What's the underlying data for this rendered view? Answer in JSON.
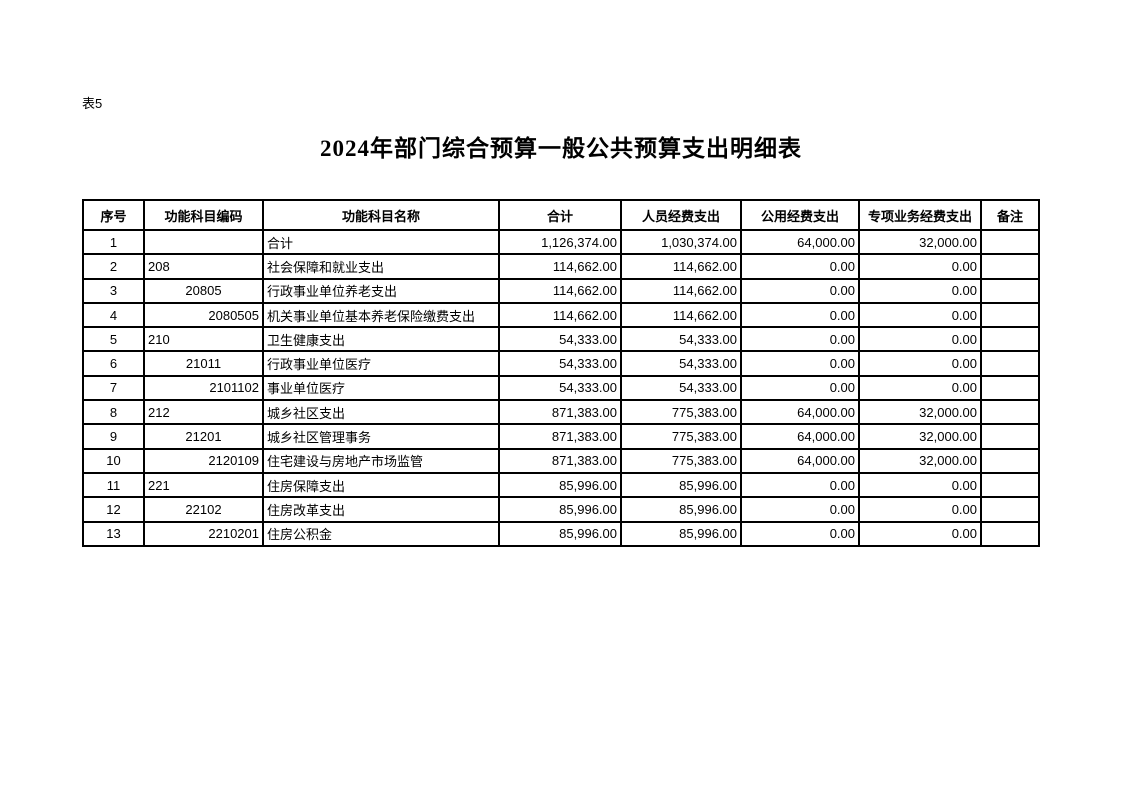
{
  "page": {
    "table_label": "表5",
    "title": "2024年部门综合预算一般公共预算支出明细表"
  },
  "table": {
    "columns": [
      "序号",
      "功能科目编码",
      "功能科目名称",
      "合计",
      "人员经费支出",
      "公用经费支出",
      "专项业务经费支出",
      "备注"
    ],
    "rows": [
      {
        "index": "1",
        "code": "",
        "name": "合计",
        "total": "1,126,374.00",
        "personnel": "1,030,374.00",
        "public": "64,000.00",
        "special": "32,000.00",
        "remark": ""
      },
      {
        "index": "2",
        "code": "208",
        "name": "社会保障和就业支出",
        "total": "114,662.00",
        "personnel": "114,662.00",
        "public": "0.00",
        "special": "0.00",
        "remark": ""
      },
      {
        "index": "3",
        "code": "20805",
        "name": "行政事业单位养老支出",
        "total": "114,662.00",
        "personnel": "114,662.00",
        "public": "0.00",
        "special": "0.00",
        "remark": ""
      },
      {
        "index": "4",
        "code": "2080505",
        "name": "机关事业单位基本养老保险缴费支出",
        "total": "114,662.00",
        "personnel": "114,662.00",
        "public": "0.00",
        "special": "0.00",
        "remark": ""
      },
      {
        "index": "5",
        "code": "210",
        "name": "卫生健康支出",
        "total": "54,333.00",
        "personnel": "54,333.00",
        "public": "0.00",
        "special": "0.00",
        "remark": ""
      },
      {
        "index": "6",
        "code": "21011",
        "name": "行政事业单位医疗",
        "total": "54,333.00",
        "personnel": "54,333.00",
        "public": "0.00",
        "special": "0.00",
        "remark": ""
      },
      {
        "index": "7",
        "code": "2101102",
        "name": "事业单位医疗",
        "total": "54,333.00",
        "personnel": "54,333.00",
        "public": "0.00",
        "special": "0.00",
        "remark": ""
      },
      {
        "index": "8",
        "code": "212",
        "name": "城乡社区支出",
        "total": "871,383.00",
        "personnel": "775,383.00",
        "public": "64,000.00",
        "special": "32,000.00",
        "remark": ""
      },
      {
        "index": "9",
        "code": "21201",
        "name": "城乡社区管理事务",
        "total": "871,383.00",
        "personnel": "775,383.00",
        "public": "64,000.00",
        "special": "32,000.00",
        "remark": ""
      },
      {
        "index": "10",
        "code": "2120109",
        "name": "住宅建设与房地产市场监管",
        "total": "871,383.00",
        "personnel": "775,383.00",
        "public": "64,000.00",
        "special": "32,000.00",
        "remark": ""
      },
      {
        "index": "11",
        "code": "221",
        "name": "住房保障支出",
        "total": "85,996.00",
        "personnel": "85,996.00",
        "public": "0.00",
        "special": "0.00",
        "remark": ""
      },
      {
        "index": "12",
        "code": "22102",
        "name": "住房改革支出",
        "total": "85,996.00",
        "personnel": "85,996.00",
        "public": "0.00",
        "special": "0.00",
        "remark": ""
      },
      {
        "index": "13",
        "code": "2210201",
        "name": "住房公积金",
        "total": "85,996.00",
        "personnel": "85,996.00",
        "public": "0.00",
        "special": "0.00",
        "remark": ""
      }
    ]
  }
}
